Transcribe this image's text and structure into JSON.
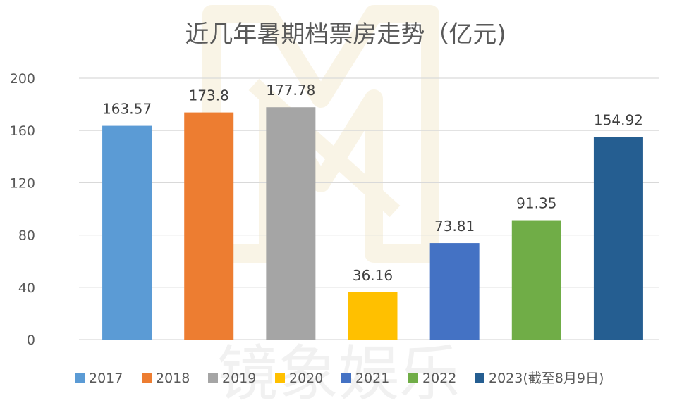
{
  "chart_data": {
    "type": "bar",
    "title": "近几年暑期档票房走势（亿元)",
    "categories": [
      "2017",
      "2018",
      "2019",
      "2020",
      "2021",
      "2022",
      "2023(截至8月9日)"
    ],
    "values": [
      163.57,
      173.8,
      177.78,
      36.16,
      73.81,
      91.35,
      154.92
    ],
    "value_labels": [
      "163.57",
      "173.8",
      "177.78",
      "36.16",
      "73.81",
      "91.35",
      "154.92"
    ],
    "colors": [
      "#5b9bd5",
      "#ed7d31",
      "#a5a5a5",
      "#ffc000",
      "#4472c4",
      "#70ad47",
      "#255e91"
    ],
    "ylim": [
      0,
      200
    ],
    "yticks": [
      0,
      40,
      80,
      120,
      160,
      200
    ],
    "ytick_labels": [
      "0",
      "40",
      "80",
      "120",
      "160",
      "200"
    ],
    "xlabel": "",
    "ylabel": "",
    "grid": true,
    "legend_position": "bottom"
  },
  "watermark_text": "镜象娱乐"
}
